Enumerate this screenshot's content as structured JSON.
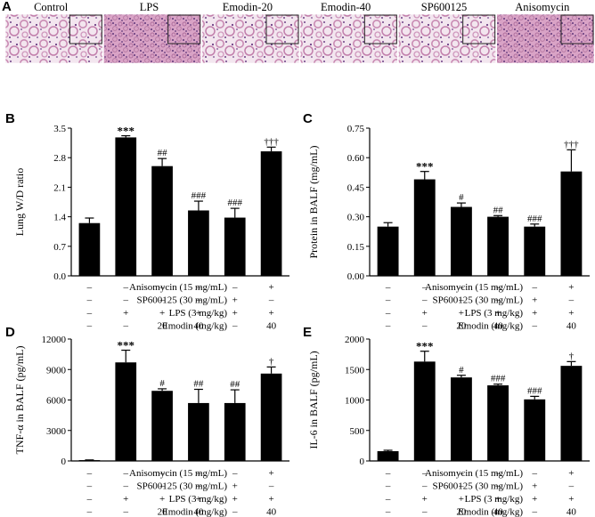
{
  "histology": {
    "letter": "A",
    "labels": [
      "Control",
      "LPS",
      "Emodin-20",
      "Emodin-40",
      "SP600125",
      "Anisomycin"
    ]
  },
  "condition_rows": [
    {
      "label": "Anisomycin (15 mg/mL)",
      "marks": [
        "–",
        "–",
        "–",
        "–",
        "–",
        "+"
      ]
    },
    {
      "label": "SP600125 (30 mg/mL)",
      "marks": [
        "–",
        "–",
        "–",
        "–",
        "+",
        "–"
      ]
    },
    {
      "label": "LPS (3 mg/kg)",
      "marks": [
        "–",
        "+",
        "+",
        "+",
        "+",
        "+"
      ]
    },
    {
      "label": "Emodin (mg/kg)",
      "marks": [
        "–",
        "–",
        "20",
        "40",
        "–",
        "40"
      ]
    }
  ],
  "chart_data": [
    {
      "id": "B",
      "type": "bar",
      "letter": "B",
      "ylabel": "Lung W/D ratio",
      "ylim": [
        0.0,
        3.5
      ],
      "yticks": [
        "0.0",
        "0.7",
        "1.4",
        "2.1",
        "2.8",
        "3.5"
      ],
      "yticks_values": [
        0.0,
        0.7,
        1.4,
        2.1,
        2.8,
        3.5
      ],
      "values": [
        1.25,
        3.28,
        2.6,
        1.55,
        1.38,
        2.95
      ],
      "errors": [
        0.12,
        0.04,
        0.18,
        0.22,
        0.22,
        0.1
      ],
      "annotations": [
        "",
        "***",
        "##",
        "###",
        "###",
        "†††"
      ]
    },
    {
      "id": "C",
      "type": "bar",
      "letter": "C",
      "ylabel": "Protein in BALF (mg/mL)",
      "ylim": [
        0.0,
        0.75
      ],
      "yticks": [
        "0.00",
        "0.15",
        "0.30",
        "0.45",
        "0.60",
        "0.75"
      ],
      "yticks_values": [
        0.0,
        0.15,
        0.3,
        0.45,
        0.6,
        0.75
      ],
      "values": [
        0.25,
        0.49,
        0.35,
        0.3,
        0.25,
        0.53
      ],
      "errors": [
        0.02,
        0.04,
        0.02,
        0.006,
        0.013,
        0.11
      ],
      "annotations": [
        "",
        "***",
        "#",
        "##",
        "###",
        "†††"
      ]
    },
    {
      "id": "D",
      "type": "bar",
      "letter": "D",
      "ylabel": "TNF-α in BALF (pg/mL)",
      "ylim": [
        0,
        12000
      ],
      "yticks": [
        "0",
        "3000",
        "6000",
        "9000",
        "12000"
      ],
      "yticks_values": [
        0,
        3000,
        6000,
        9000,
        12000
      ],
      "values": [
        80,
        9700,
        6900,
        5700,
        5700,
        8600
      ],
      "errors": [
        20,
        1200,
        200,
        1350,
        1300,
        650
      ],
      "annotations": [
        "",
        "***",
        "#",
        "##",
        "##",
        "†"
      ]
    },
    {
      "id": "E",
      "type": "bar",
      "letter": "E",
      "ylabel": "IL-6 in BALF (pg/mL)",
      "ylim": [
        0,
        2000
      ],
      "yticks": [
        "0",
        "500",
        "1000",
        "1500",
        "2000"
      ],
      "yticks_values": [
        0,
        500,
        1000,
        1500,
        2000
      ],
      "values": [
        160,
        1630,
        1370,
        1240,
        1010,
        1560
      ],
      "errors": [
        15,
        170,
        35,
        20,
        50,
        70
      ],
      "annotations": [
        "",
        "***",
        "#",
        "###",
        "###",
        "†"
      ]
    }
  ],
  "colors": {
    "bar": "#000000",
    "axis": "#000000",
    "tissue_pink": "#d9a1c3",
    "tissue_purple": "#7c4a8e"
  }
}
